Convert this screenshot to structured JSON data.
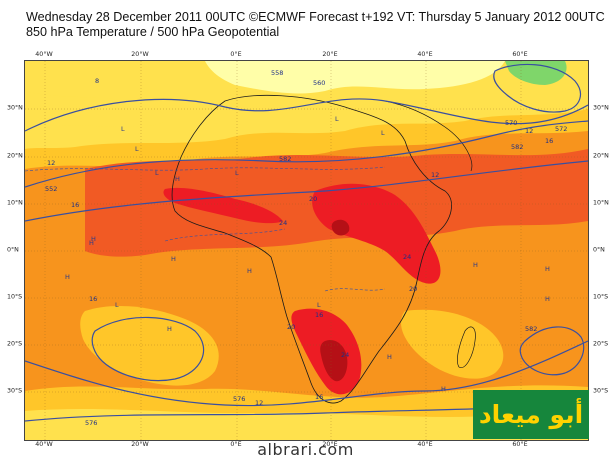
{
  "header": {
    "line1": "Wednesday 28 December 2011 00UTC ©ECMWF Forecast t+192 VT: Thursday 5 January 2012 00UTC",
    "line2": "850 hPa Temperature / 500 hPa Geopotential"
  },
  "axes": {
    "longitude_ticks": [
      "40°W",
      "20°W",
      "0°E",
      "20°E",
      "40°E",
      "60°E"
    ],
    "latitude_ticks": [
      "30°N",
      "20°N",
      "10°N",
      "0°N",
      "10°S",
      "20°S",
      "30°S"
    ]
  },
  "contour_labels": [
    "558",
    "8",
    "560",
    "570",
    "12",
    "16",
    "582",
    "552",
    "582",
    "572",
    "12",
    "20",
    "16",
    "24",
    "24",
    "20",
    "12",
    "16",
    "20",
    "24",
    "16",
    "12",
    "16",
    "576",
    "582",
    "576"
  ],
  "pressure_marks": [
    "H",
    "L"
  ],
  "watermark": {
    "arabic_text": "أبو ميعاد",
    "site": "albrari.com"
  },
  "colors": {
    "band_cold": "#fffea8",
    "band_cool": "#ffe14d",
    "band_mild": "#ffc629",
    "band_warm": "#f7941d",
    "band_hot": "#f15a24",
    "band_very_hot": "#ed1c24",
    "band_extreme": "#b51016",
    "band_green": "#7fd66a",
    "contour": "#3a4fa0",
    "badge_bg": "#16863c",
    "badge_text": "#ffd200"
  }
}
